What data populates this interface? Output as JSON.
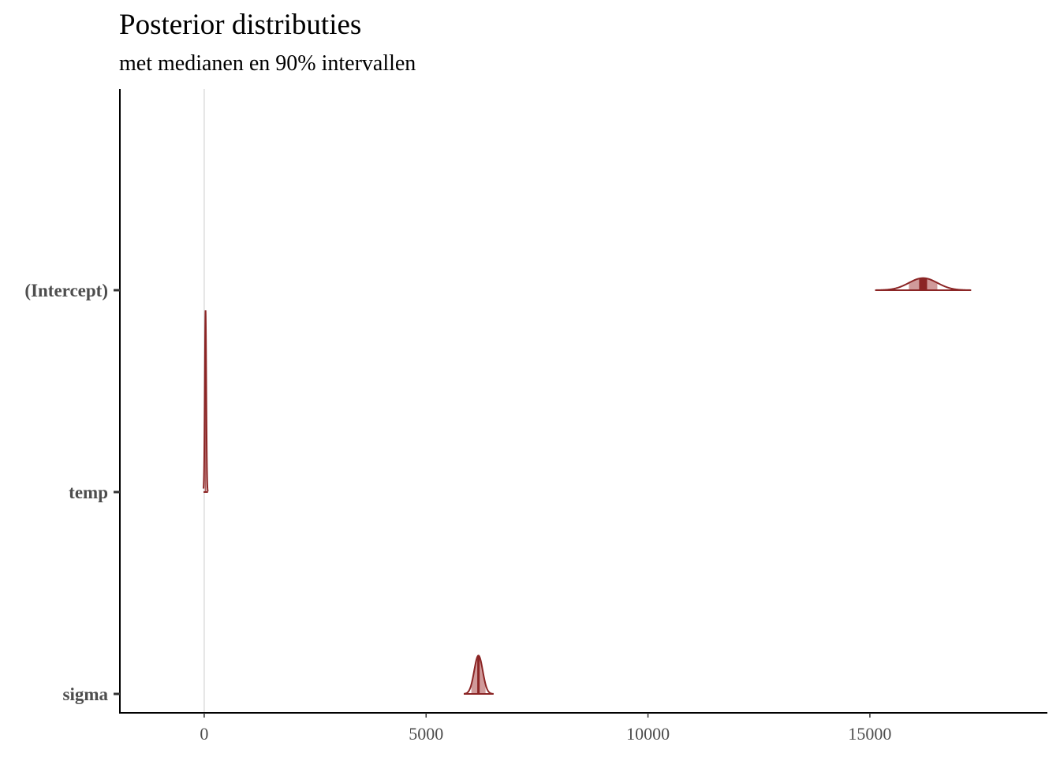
{
  "chart_data": {
    "type": "ridgeline",
    "title": "Posterior distributies",
    "subtitle": "met medianen en 90% intervallen",
    "xlabel": "",
    "ylabel": "",
    "xlim": [
      -1900,
      19000
    ],
    "x_ticks": [
      0,
      5000,
      10000,
      15000
    ],
    "x_tick_labels": [
      "0",
      "5000",
      "10000",
      "15000"
    ],
    "reference_line_x": 0,
    "grid": false,
    "categories": [
      "(Intercept)",
      "temp",
      "sigma"
    ],
    "series": [
      {
        "name": "(Intercept)",
        "median": 16200,
        "interval_90": [
          15880,
          16520
        ],
        "support": [
          15120,
          17280
        ],
        "sd": 320,
        "peak_height": 0.06
      },
      {
        "name": "temp",
        "median": 30,
        "interval_90": [
          10,
          50
        ],
        "support": [
          -15,
          85
        ],
        "sd": 16,
        "peak_height": 0.9
      },
      {
        "name": "sigma",
        "median": 6180,
        "interval_90": [
          6020,
          6340
        ],
        "support": [
          5850,
          6520
        ],
        "sd": 96,
        "peak_height": 0.19
      }
    ],
    "colors": {
      "outline": "#8b2525",
      "interval_fill": "#d09a9a",
      "median_fill": "#8b2525",
      "reference_line": "#dddddd",
      "axis": "#000000",
      "tick_label": "#4d4d4d"
    }
  }
}
